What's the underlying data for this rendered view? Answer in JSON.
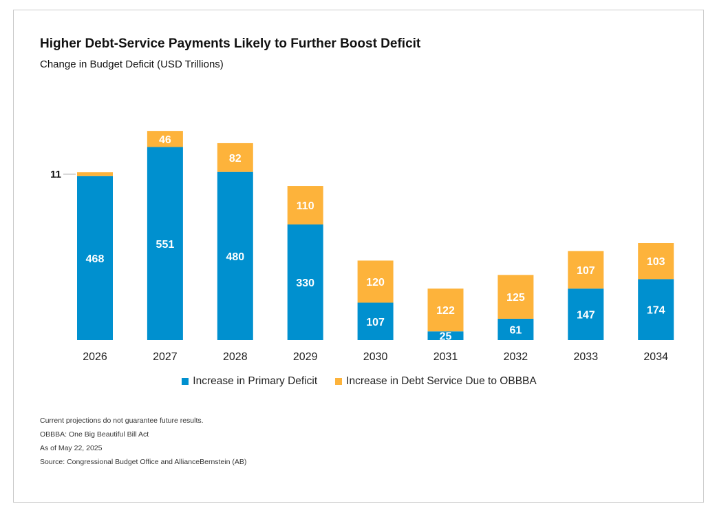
{
  "title": "Higher Debt-Service Payments Likely to Further Boost Deficit",
  "subtitle": "Change in Budget Deficit (USD Trillions)",
  "notes": [
    "Current projections do not guarantee future results.",
    "OBBBA: One Big Beautiful Bill Act",
    "As of May 22, 2025",
    "Source: Congressional Budget Office and AllianceBernstein (AB)"
  ],
  "colors": {
    "primary": "#0090cf",
    "debt_service": "#fdb33b",
    "bar_label": "#ffffff"
  },
  "chart_data": {
    "type": "bar",
    "stacked": true,
    "categories": [
      "2026",
      "2027",
      "2028",
      "2029",
      "2030",
      "2031",
      "2032",
      "2033",
      "2034"
    ],
    "series": [
      {
        "name": "Increase in Primary Deficit",
        "values": [
          468,
          551,
          480,
          330,
          107,
          25,
          61,
          147,
          174
        ]
      },
      {
        "name": "Increase in Debt Service Due to OBBBA",
        "values": [
          11,
          46,
          82,
          110,
          120,
          122,
          125,
          107,
          103
        ]
      }
    ],
    "callout_labels": [
      "11",
      "",
      "",
      "",
      "",
      "",
      "",
      "",
      ""
    ],
    "inside_labels_top": [
      "",
      "46",
      "82",
      "110",
      "120",
      "122",
      "125",
      "107",
      "103"
    ],
    "ylim": [
      0,
      600
    ],
    "grid": false,
    "legend": "bottom"
  }
}
